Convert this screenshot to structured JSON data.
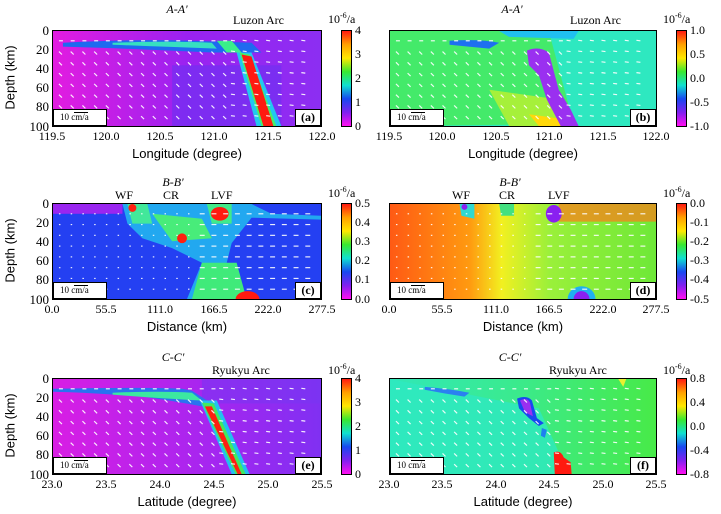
{
  "chart_data": [
    {
      "id": "a",
      "type": "heatmap",
      "title": "A-A'",
      "annotation": "Luzon Arc",
      "panel_label": "(a)",
      "xlabel": "Longitude (degree)",
      "ylabel": "Depth (km)",
      "x_ticks": [
        "119.5",
        "120.0",
        "120.5",
        "121.0",
        "121.5",
        "122.0"
      ],
      "y_ticks": [
        "0",
        "20",
        "40",
        "60",
        "80",
        "100"
      ],
      "xlim": [
        119.5,
        122.0
      ],
      "ylim": [
        0,
        100
      ],
      "colorbar": {
        "unit": "10-6/a",
        "ticks": [
          "4",
          "3",
          "2",
          "1",
          "0"
        ],
        "range": [
          0,
          4
        ]
      },
      "scale_label": "10 cm/a",
      "description": "Magenta background with a red high-strain-rate slab dipping from ~120.8 at 25 km to ~121.3 at 100 km; green/cyan band along 10-20 km depth from 119.7 to 121.0"
    },
    {
      "id": "b",
      "type": "heatmap",
      "title": "A-A'",
      "annotation": "Luzon Arc",
      "panel_label": "(b)",
      "xlabel": "Longitude (degree)",
      "ylabel": "",
      "x_ticks": [
        "119.5",
        "120.0",
        "120.5",
        "121.0",
        "121.5",
        "122.0"
      ],
      "xlim": [
        119.5,
        122.0
      ],
      "ylim": [
        0,
        100
      ],
      "colorbar": {
        "unit": "10-6/a",
        "ticks": [
          "1.0",
          "0.5",
          "0.0",
          "-0.5",
          "-1.0"
        ],
        "range": [
          -1.0,
          1.0
        ]
      },
      "scale_label": "10 cm/a",
      "description": "Green left region, cyan right region, purple negative slab following the dipping interface"
    },
    {
      "id": "c",
      "type": "heatmap",
      "title": "B-B'",
      "annotation": [
        "WF",
        "CR",
        "LVF"
      ],
      "panel_label": "(c)",
      "xlabel": "Distance (km)",
      "ylabel": "Depth (km)",
      "x_ticks": [
        "0.0",
        "55.5",
        "111.0",
        "166.5",
        "222.0",
        "277.5"
      ],
      "y_ticks": [
        "0",
        "20",
        "40",
        "60",
        "80",
        "100"
      ],
      "xlim": [
        0,
        277.5
      ],
      "ylim": [
        0,
        100
      ],
      "colorbar": {
        "unit": "10-6/a",
        "ticks": [
          "0.5",
          "0.4",
          "0.3",
          "0.2",
          "0.1",
          "0.0"
        ],
        "range": [
          0.0,
          0.5
        ]
      },
      "scale_label": "10 cm/a",
      "description": "Blue background with red hotspots at WF (~77 km, 0-10 km), CR (~135 km, 35 km depth), LVF (~175 km, 0-15 km) and ~200 km at 95-100 km depth"
    },
    {
      "id": "d",
      "type": "heatmap",
      "title": "B-B'",
      "annotation": [
        "WF",
        "CR",
        "LVF"
      ],
      "panel_label": "(d)",
      "xlabel": "Distance (km)",
      "ylabel": "",
      "x_ticks": [
        "0.0",
        "55.5",
        "111.0",
        "166.5",
        "222.0",
        "277.5"
      ],
      "xlim": [
        0,
        277.5
      ],
      "ylim": [
        0,
        100
      ],
      "colorbar": {
        "unit": "10-6/a",
        "ticks": [
          "0.0",
          "-0.1",
          "-0.2",
          "-0.3",
          "-0.4",
          "-0.5"
        ],
        "range": [
          -0.5,
          0.0
        ]
      },
      "scale_label": "10 cm/a",
      "description": "Orange left, yellow center, green right; purple lows at LVF top and ~200 km bottom"
    },
    {
      "id": "e",
      "type": "heatmap",
      "title": "C-C'",
      "annotation": "Ryukyu Arc",
      "panel_label": "(e)",
      "xlabel": "Latitude (degree)",
      "ylabel": "Depth (km)",
      "x_ticks": [
        "23.0",
        "23.5",
        "24.0",
        "24.5",
        "25.0",
        "25.5"
      ],
      "y_ticks": [
        "0",
        "20",
        "40",
        "60",
        "80",
        "100"
      ],
      "xlim": [
        23.0,
        25.5
      ],
      "ylim": [
        0,
        100
      ],
      "colorbar": {
        "unit": "10-6/a",
        "ticks": [
          "4",
          "3",
          "2",
          "1",
          "0"
        ],
        "range": [
          0,
          4
        ]
      },
      "scale_label": "10 cm/a",
      "description": "Magenta background, red slab dipping from ~24.25 at 25 km to ~24.7 at 100 km"
    },
    {
      "id": "f",
      "type": "heatmap",
      "title": "C-C'",
      "annotation": "Ryukyu Arc",
      "panel_label": "(f)",
      "xlabel": "Latitude (degree)",
      "ylabel": "",
      "x_ticks": [
        "23.0",
        "23.5",
        "24.0",
        "24.5",
        "25.0",
        "25.5"
      ],
      "xlim": [
        23.0,
        25.5
      ],
      "ylim": [
        0,
        100
      ],
      "colorbar": {
        "unit": "10-6/a",
        "ticks": [
          "0.8",
          "0.4",
          "0.0",
          "-0.4",
          "-0.8"
        ],
        "range": [
          -0.8,
          0.8
        ]
      },
      "scale_label": "10 cm/a",
      "description": "Cyan left, green right; purple blob at ~24.3 lat 20-35 km; red blob at ~24.7 lat 80-100 km"
    }
  ]
}
